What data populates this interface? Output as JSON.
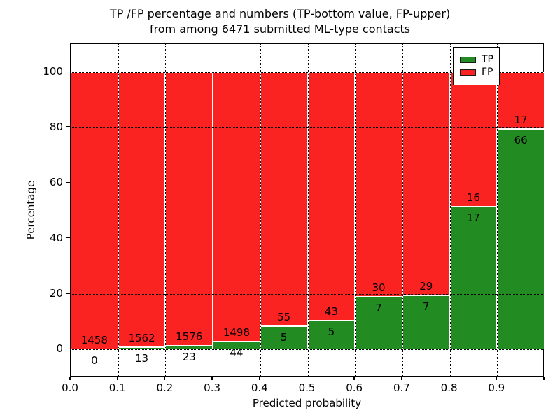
{
  "title": {
    "line1": "TP /FP percentage and numbers (TP-bottom value, FP-upper)",
    "line2": "from among 6471 submitted ML-type contacts"
  },
  "chart_data": {
    "type": "bar",
    "stacked": true,
    "orientation": "vertical",
    "title": "TP /FP percentage and numbers (TP-bottom value, FP-upper) from among 6471 submitted ML-type contacts",
    "xlabel": "Predicted probability",
    "ylabel": "Percentage",
    "total_submitted": 6471,
    "x_bins": [
      "0.0-0.1",
      "0.1-0.2",
      "0.2-0.3",
      "0.3-0.4",
      "0.4-0.5",
      "0.5-0.6",
      "0.6-0.7",
      "0.7-0.8",
      "0.8-0.9",
      "0.9-1.0"
    ],
    "series": [
      {
        "name": "TP",
        "color": "#228b22",
        "counts": [
          0,
          13,
          23,
          44,
          5,
          5,
          7,
          7,
          17,
          66
        ],
        "percent": [
          0.0,
          0.83,
          1.44,
          2.85,
          8.33,
          10.42,
          18.92,
          19.44,
          51.52,
          79.52
        ]
      },
      {
        "name": "FP",
        "color": "#fb2222",
        "counts": [
          1458,
          1562,
          1576,
          1498,
          55,
          43,
          30,
          29,
          16,
          17
        ],
        "percent": [
          100.0,
          99.17,
          98.56,
          97.15,
          91.67,
          89.58,
          81.08,
          80.56,
          48.48,
          20.48
        ]
      }
    ],
    "x_tick_labels": [
      "0.0",
      "0.1",
      "0.2",
      "0.3",
      "0.4",
      "0.5",
      "0.6",
      "0.7",
      "0.8",
      "0.9"
    ],
    "y_tick_values": [
      0,
      20,
      40,
      60,
      80,
      100
    ],
    "xlim": [
      0.0,
      1.0
    ],
    "ylim": [
      -10,
      110
    ],
    "grid": {
      "style": "dotted",
      "color": "#000000",
      "x_lines": [
        0.1,
        0.2,
        0.3,
        0.4,
        0.5,
        0.6,
        0.7,
        0.8,
        0.9
      ],
      "y_lines": [
        0,
        20,
        40,
        60,
        80,
        100
      ]
    },
    "legend": {
      "position": "upper right",
      "entries": [
        {
          "label": "TP",
          "color": "#228b22"
        },
        {
          "label": "FP",
          "color": "#fb2222"
        }
      ]
    }
  }
}
